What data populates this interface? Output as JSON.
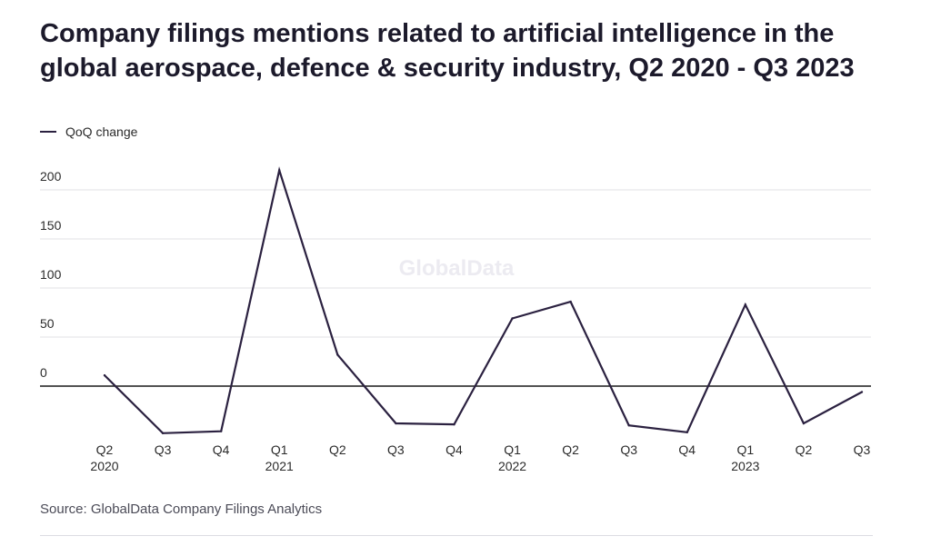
{
  "title": "Company filings mentions related to artificial intelligence in the global aerospace, defence & security industry, Q2 2020 - Q3 2023",
  "source": "Source: GlobalData Company Filings Analytics",
  "watermark": "GlobalData",
  "colors": {
    "line": "#2b2140",
    "grid": "#e2e2e6",
    "zero": "#1a1a1a",
    "text": "#2b2b2b"
  },
  "chart_data": {
    "type": "line",
    "legend_position": "top-left",
    "grid": true,
    "ylim": [
      -60,
      220
    ],
    "yticks": [
      0,
      50,
      100,
      150,
      200
    ],
    "categories": [
      {
        "q": "Q2",
        "y": "2020"
      },
      {
        "q": "Q3",
        "y": ""
      },
      {
        "q": "Q4",
        "y": ""
      },
      {
        "q": "Q1",
        "y": "2021"
      },
      {
        "q": "Q2",
        "y": ""
      },
      {
        "q": "Q3",
        "y": ""
      },
      {
        "q": "Q4",
        "y": ""
      },
      {
        "q": "Q1",
        "y": "2022"
      },
      {
        "q": "Q2",
        "y": ""
      },
      {
        "q": "Q3",
        "y": ""
      },
      {
        "q": "Q4",
        "y": ""
      },
      {
        "q": "Q1",
        "y": "2023"
      },
      {
        "q": "Q2",
        "y": ""
      },
      {
        "q": "Q3",
        "y": ""
      }
    ],
    "series": [
      {
        "name": "QoQ change",
        "values": [
          11,
          -48,
          -46,
          220,
          32,
          -38,
          -39,
          69,
          86,
          -40,
          -47,
          83,
          -38,
          -6
        ]
      }
    ]
  }
}
